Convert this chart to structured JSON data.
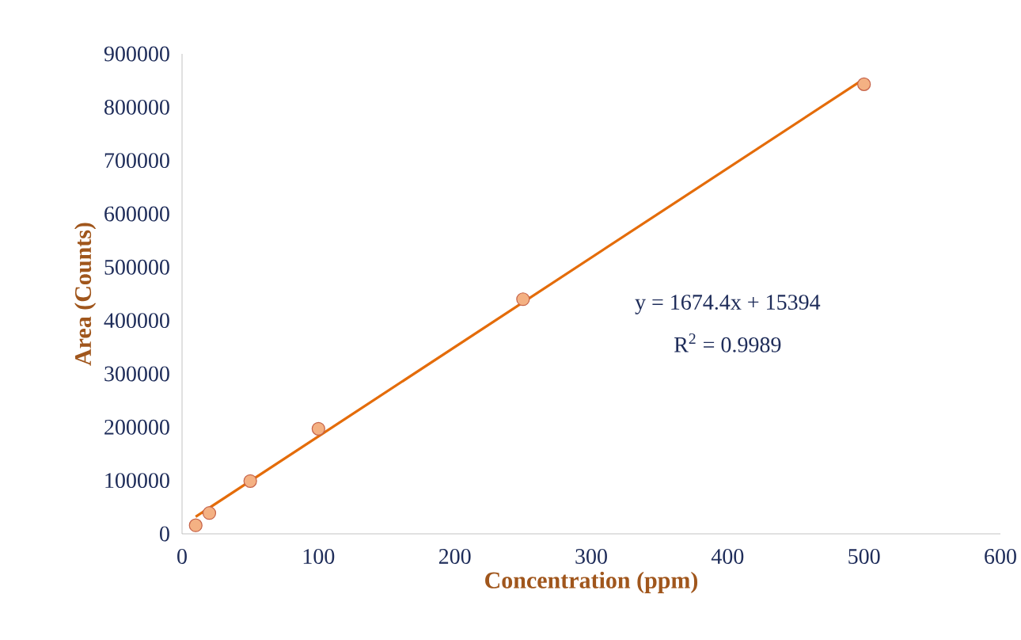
{
  "chart_data": {
    "type": "scatter",
    "xlabel": "Concentration (ppm)",
    "ylabel": "Area (Counts)",
    "xlim": [
      0,
      600
    ],
    "xticks": [
      0,
      100,
      200,
      300,
      400,
      500,
      600
    ],
    "ylim": [
      0,
      900000
    ],
    "yticks": [
      0,
      100000,
      200000,
      300000,
      400000,
      500000,
      600000,
      700000,
      800000,
      900000
    ],
    "grid": false,
    "series": [
      {
        "color": "#f4b183",
        "marker": "circle",
        "x": [
          10,
          20,
          50,
          100,
          250,
          500
        ],
        "values": [
          16000,
          39000,
          99000,
          197000,
          440000,
          843000
        ]
      },
      {
        "type": "line",
        "color": "#e46c0a",
        "x": [
          10,
          500
        ],
        "values": [
          32000,
          853000
        ],
        "marker": "none",
        "line_style": "solid"
      }
    ],
    "annotations": [
      "y = 1674.4x + 15394",
      "R$^{2}$ = 0.9989"
    ]
  }
}
